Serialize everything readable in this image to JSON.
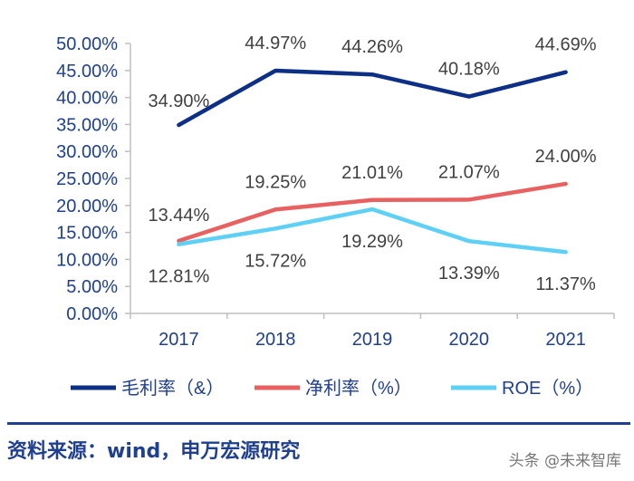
{
  "chart_data": {
    "type": "line",
    "categories": [
      "2017",
      "2018",
      "2019",
      "2020",
      "2021"
    ],
    "ylim": [
      0,
      50
    ],
    "yticks": [
      "0.00%",
      "5.00%",
      "10.00%",
      "15.00%",
      "20.00%",
      "25.00%",
      "30.00%",
      "35.00%",
      "40.00%",
      "45.00%",
      "50.00%"
    ],
    "grid": false,
    "legend_position": "bottom",
    "series": [
      {
        "name": "毛利率（&）",
        "color": "#0e2f86",
        "values": [
          34.9,
          44.97,
          44.26,
          40.18,
          44.69
        ],
        "labels": [
          "34.90%",
          "44.97%",
          "44.26%",
          "40.18%",
          "44.69%"
        ]
      },
      {
        "name": "净利率（%）",
        "color": "#e8605f",
        "values": [
          13.44,
          19.25,
          21.01,
          21.07,
          24.0
        ],
        "labels": [
          "13.44%",
          "19.25%",
          "21.01%",
          "21.07%",
          "24.00%"
        ]
      },
      {
        "name": "ROE（%）",
        "color": "#5fd0f5",
        "values": [
          12.81,
          15.72,
          19.29,
          13.39,
          11.37
        ],
        "labels": [
          "12.81%",
          "15.72%",
          "19.29%",
          "13.39%",
          "11.37%"
        ]
      }
    ]
  },
  "footer": {
    "source": "资料来源：wind，申万宏源研究",
    "watermark": "头条 @未来智库"
  }
}
